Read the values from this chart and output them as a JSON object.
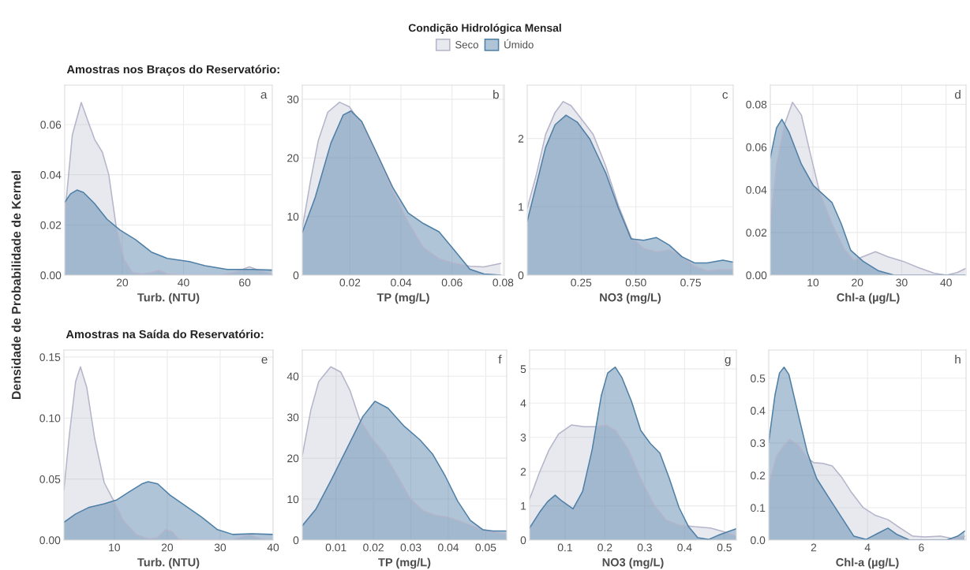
{
  "chart_data": [
    {
      "type": "area",
      "title": "Amostras nos Braços do Reservatório:",
      "ylabel": "Densidade de Probabilidade de Kernel",
      "legend_title": "Condição Hidrológica Mensal",
      "legend": "top",
      "xlabel": "Turb. (NTU)",
      "annotations": [
        "a"
      ],
      "grid": true,
      "xlim": [
        1.2,
        69
      ],
      "ylim": [
        0,
        0.0757
      ],
      "xticks": [
        20,
        40,
        60
      ],
      "yticks": [
        {
          "value": 0,
          "label": "0.00"
        },
        {
          "value": 0.02,
          "label": "0.02"
        },
        {
          "value": 0.04,
          "label": "0.04"
        },
        {
          "value": 0.06,
          "label": "0.06"
        }
      ],
      "series": [
        {
          "name": "Seco",
          "color": "#b4b4ca",
          "x": [
            1.2,
            3.7,
            6.6,
            8.9,
            11,
            13.5,
            15.6,
            18.1,
            20.7,
            23.3,
            26.4,
            29.5,
            32.1,
            34.7,
            39.9,
            52.2,
            56.4,
            61.5,
            64.6,
            69
          ],
          "values": [
            0.0236,
            0.056,
            0.0688,
            0.061,
            0.054,
            0.049,
            0.04,
            0.0186,
            0.006,
            0.001,
            0.0004,
            0.001,
            0.002,
            0.0004,
            0,
            0,
            0.001,
            0.0033,
            0.002,
            0.0003
          ]
        },
        {
          "name": "Úmido",
          "color": "#4e7fa6",
          "x": [
            1.2,
            3.1,
            5.2,
            7.3,
            10.9,
            15,
            19.2,
            24.3,
            29.5,
            34.7,
            41.9,
            47,
            54.3,
            62.5,
            69
          ],
          "values": [
            0.029,
            0.0324,
            0.0339,
            0.033,
            0.0286,
            0.0223,
            0.018,
            0.0142,
            0.0092,
            0.0067,
            0.0054,
            0.0038,
            0.0023,
            0.0023,
            0.002
          ]
        }
      ]
    },
    {
      "type": "area",
      "xlabel": "TP (mg/L)",
      "annotations": [
        "b"
      ],
      "grid": true,
      "xlim": [
        0.0013,
        0.0805
      ],
      "ylim": [
        0,
        32.4
      ],
      "xticks": [
        0.02,
        0.04,
        0.06,
        0.08
      ],
      "yticks": [
        0,
        10,
        20,
        30
      ],
      "series": [
        {
          "color": "#b4b4ca",
          "x": [
            0.0013,
            0.0045,
            0.0076,
            0.0113,
            0.0159,
            0.0198,
            0.0246,
            0.0307,
            0.0367,
            0.0428,
            0.0488,
            0.0549,
            0.061,
            0.067,
            0.0725,
            0.079
          ],
          "values": [
            8,
            16,
            23,
            27.8,
            29.5,
            28.7,
            25.7,
            20.3,
            14.4,
            9,
            4.7,
            2.8,
            2,
            1.5,
            1.4,
            2.0
          ]
        },
        {
          "color": "#4e7fa6",
          "x": [
            0.0013,
            0.0064,
            0.0125,
            0.0173,
            0.0204,
            0.0246,
            0.0307,
            0.0367,
            0.0428,
            0.0488,
            0.0549,
            0.061,
            0.067,
            0.0725,
            0.079
          ],
          "values": [
            7.3,
            13.3,
            22.5,
            27.3,
            28,
            26.2,
            20.6,
            15,
            10.6,
            8.8,
            7.4,
            4.2,
            1,
            0.2,
            0
          ]
        }
      ]
    },
    {
      "type": "area",
      "xlabel": "NO3 (mg/L)",
      "annotations": [
        "c"
      ],
      "grid": true,
      "xlim": [
        0.004,
        0.944
      ],
      "ylim": [
        0,
        2.78
      ],
      "xticks": [
        0.25,
        {
          "value": 0.5,
          "label": "0.50"
        },
        0.75
      ],
      "yticks": [
        0,
        1,
        2
      ],
      "series": [
        {
          "color": "#b4b4ca",
          "x": [
            0.004,
            0.044,
            0.088,
            0.131,
            0.168,
            0.204,
            0.262,
            0.305,
            0.363,
            0.42,
            0.478,
            0.536,
            0.594,
            0.652,
            0.71,
            0.767,
            0.825,
            0.883,
            0.944
          ],
          "values": [
            0.98,
            1.45,
            2.06,
            2.38,
            2.54,
            2.48,
            2.24,
            2.06,
            1.59,
            1.02,
            0.55,
            0.39,
            0.34,
            0.37,
            0.27,
            0.13,
            0.06,
            0.08,
            0.08
          ]
        },
        {
          "color": "#4e7fa6",
          "x": [
            0.004,
            0.044,
            0.088,
            0.131,
            0.181,
            0.232,
            0.29,
            0.363,
            0.42,
            0.478,
            0.536,
            0.594,
            0.652,
            0.71,
            0.767,
            0.825,
            0.897,
            0.944
          ],
          "values": [
            0.79,
            1.3,
            1.87,
            2.2,
            2.34,
            2.24,
            1.99,
            1.49,
            0.98,
            0.53,
            0.51,
            0.55,
            0.44,
            0.27,
            0.18,
            0.18,
            0.22,
            0.19
          ]
        }
      ]
    },
    {
      "type": "area",
      "xlabel": "Chl-a (µg/L)",
      "annotations": [
        "d"
      ],
      "grid": true,
      "xlim": [
        0.4,
        44.5
      ],
      "ylim": [
        0,
        0.089
      ],
      "xticks": [
        10,
        20,
        30,
        40
      ],
      "yticks": [
        {
          "value": 0,
          "label": "0.00"
        },
        {
          "value": 0.02,
          "label": "0.02"
        },
        {
          "value": 0.04,
          "label": "0.04"
        },
        {
          "value": 0.06,
          "label": "0.06"
        },
        {
          "value": 0.08,
          "label": "0.08"
        }
      ],
      "series": [
        {
          "color": "#b4b4ca",
          "x": [
            0.4,
            1.8,
            3.5,
            5.4,
            7.4,
            9.4,
            11.5,
            14.3,
            17.1,
            19.2,
            21.3,
            24.1,
            26.8,
            30.3,
            33.8,
            37.3,
            40.1,
            42.5,
            44.3
          ],
          "values": [
            0.025,
            0.051,
            0.07,
            0.081,
            0.075,
            0.057,
            0.039,
            0.024,
            0.012,
            0.0069,
            0.0087,
            0.011,
            0.0087,
            0.0065,
            0.0035,
            0.0009,
            0,
            0.0012,
            0.003
          ]
        },
        {
          "color": "#4e7fa6",
          "x": [
            0.4,
            1.8,
            3,
            4.6,
            7.4,
            10.1,
            12.2,
            14.3,
            16.4,
            18.5,
            21.3,
            24.8,
            28.3,
            44.3
          ],
          "values": [
            0.055,
            0.069,
            0.073,
            0.067,
            0.052,
            0.042,
            0.038,
            0.034,
            0.024,
            0.0117,
            0.0065,
            0.002,
            0,
            0
          ]
        }
      ]
    },
    {
      "type": "area",
      "title": "Amostras na Saída do Reservatório:",
      "xlabel": "Turb. (NTU)",
      "annotations": [
        "e"
      ],
      "grid": true,
      "xlim": [
        0.48,
        40
      ],
      "ylim": [
        0,
        0.1557
      ],
      "xticks": [
        10,
        20,
        30,
        40
      ],
      "yticks": [
        {
          "value": 0,
          "label": "0.00"
        },
        {
          "value": 0.05,
          "label": "0.05"
        },
        {
          "value": 0.1,
          "label": "0.10"
        },
        {
          "value": 0.15,
          "label": "0.15"
        }
      ],
      "series": [
        {
          "color": "#b4b4ca",
          "x": [
            0.48,
            1.5,
            2.7,
            3.6,
            4.8,
            6.3,
            8.1,
            9.9,
            11.7,
            14.1,
            16.5,
            18.2,
            19.7,
            20.9,
            22.1,
            24.2,
            32.4,
            35.4,
            37.8,
            40
          ],
          "values": [
            0.041,
            0.086,
            0.13,
            0.142,
            0.125,
            0.083,
            0.047,
            0.032,
            0.016,
            0.0046,
            0.0008,
            0.002,
            0.0085,
            0.007,
            0.0008,
            0,
            0,
            0.0046,
            0.0008,
            0
          ]
        },
        {
          "color": "#4e7fa6",
          "x": [
            0.48,
            2.7,
            5.1,
            8.1,
            10.5,
            12.8,
            15.2,
            16.4,
            18.2,
            20.5,
            23.5,
            26.5,
            29.5,
            32.4,
            36,
            40
          ],
          "values": [
            0.0145,
            0.0214,
            0.0266,
            0.0297,
            0.033,
            0.0395,
            0.046,
            0.0478,
            0.046,
            0.0369,
            0.0279,
            0.0188,
            0.0085,
            0.0046,
            0.0052,
            0.0046
          ]
        }
      ]
    },
    {
      "type": "area",
      "xlabel": "TP (mg/L)",
      "annotations": [
        "f"
      ],
      "grid": true,
      "xlim": [
        0.001,
        0.0556
      ],
      "ylim": [
        0,
        46.4
      ],
      "xticks": [
        0.01,
        0.02,
        0.03,
        0.04,
        0.05
      ],
      "yticks": [
        0,
        10,
        20,
        30,
        40
      ],
      "series": [
        {
          "color": "#b4b4ca",
          "x": [
            0.001,
            0.0033,
            0.0054,
            0.0086,
            0.0113,
            0.0138,
            0.0163,
            0.0196,
            0.023,
            0.0264,
            0.0298,
            0.0332,
            0.0366,
            0.04,
            0.0434,
            0.0468,
            0.0501,
            0.0556
          ],
          "values": [
            20.6,
            31.8,
            38.7,
            42.3,
            41,
            36.4,
            29.5,
            24.8,
            21,
            15.6,
            10.2,
            7.2,
            6,
            5.6,
            4.5,
            3.3,
            2.3,
            1.4
          ]
        },
        {
          "color": "#4e7fa6",
          "x": [
            0.001,
            0.0046,
            0.0088,
            0.013,
            0.0172,
            0.0204,
            0.0239,
            0.0281,
            0.0324,
            0.0358,
            0.0392,
            0.0425,
            0.0459,
            0.0493,
            0.0519,
            0.0556
          ],
          "values": [
            3.5,
            7.5,
            14.8,
            22.5,
            30.2,
            33.9,
            32.2,
            27.9,
            24.5,
            21,
            15.6,
            9.5,
            4.8,
            2.5,
            2.2,
            2.2
          ]
        }
      ]
    },
    {
      "type": "area",
      "xlabel": "NO3 (mg/L)",
      "annotations": [
        "g"
      ],
      "grid": true,
      "xlim": [
        0.011,
        0.53
      ],
      "ylim": [
        0,
        5.55
      ],
      "xticks": [
        0.1,
        0.2,
        0.3,
        0.4,
        0.5
      ],
      "yticks": [
        0,
        1,
        2,
        3,
        4,
        5
      ],
      "series": [
        {
          "color": "#b4b4ca",
          "x": [
            0.011,
            0.036,
            0.06,
            0.084,
            0.116,
            0.148,
            0.179,
            0.203,
            0.227,
            0.259,
            0.29,
            0.322,
            0.354,
            0.386,
            0.425,
            0.465,
            0.497,
            0.53
          ],
          "values": [
            1.19,
            1.98,
            2.64,
            3.1,
            3.36,
            3.31,
            3.31,
            3.36,
            3.2,
            2.64,
            1.79,
            1.05,
            0.58,
            0.44,
            0.39,
            0.35,
            0.25,
            0.11
          ]
        },
        {
          "color": "#4e7fa6",
          "x": [
            0.011,
            0.036,
            0.056,
            0.075,
            0.092,
            0.12,
            0.144,
            0.168,
            0.191,
            0.207,
            0.226,
            0.243,
            0.267,
            0.29,
            0.314,
            0.338,
            0.362,
            0.386,
            0.41,
            0.433,
            0.461,
            0.489,
            0.53
          ],
          "values": [
            0.35,
            0.81,
            1.12,
            1.31,
            1.14,
            0.91,
            1.42,
            2.64,
            4.22,
            4.88,
            5.05,
            4.74,
            4.04,
            3.2,
            2.82,
            2.54,
            1.79,
            0.95,
            0.39,
            0.07,
            0.02,
            0.16,
            0.33
          ]
        }
      ]
    },
    {
      "type": "area",
      "xlabel": "Chl-a (µg/L)",
      "annotations": [
        "h"
      ],
      "grid": true,
      "xlim": [
        0.33,
        7.66
      ],
      "ylim": [
        0,
        0.587
      ],
      "xticks": [
        2,
        4,
        6
      ],
      "yticks": [
        {
          "value": 0,
          "label": "0.0"
        },
        0.1,
        0.2,
        0.3,
        0.4,
        0.5
      ],
      "series": [
        {
          "color": "#b4b4ca",
          "x": [
            0.33,
            0.62,
            0.9,
            1.11,
            1.43,
            1.77,
            2,
            2.34,
            2.69,
            3.03,
            3.38,
            3.84,
            4.3,
            4.76,
            5.22,
            5.68,
            6.14,
            6.71,
            7.17,
            7.6
          ],
          "values": [
            0.17,
            0.259,
            0.293,
            0.311,
            0.293,
            0.254,
            0.239,
            0.237,
            0.229,
            0.195,
            0.15,
            0.1,
            0.076,
            0.063,
            0.037,
            0.012,
            0.01,
            0.012,
            0.004,
            0.012
          ]
        },
        {
          "color": "#4e7fa6",
          "x": [
            0.33,
            0.56,
            0.73,
            0.9,
            1.08,
            1.43,
            1.77,
            2.11,
            2.57,
            3.03,
            3.49,
            3.95,
            4.41,
            4.76,
            5.1,
            5.56,
            6.94,
            7.35,
            7.6
          ],
          "values": [
            0.303,
            0.447,
            0.516,
            0.534,
            0.511,
            0.387,
            0.269,
            0.19,
            0.13,
            0.071,
            0.012,
            0.002,
            0.022,
            0.037,
            0.017,
            0,
            0,
            0.012,
            0.027
          ]
        }
      ]
    }
  ]
}
